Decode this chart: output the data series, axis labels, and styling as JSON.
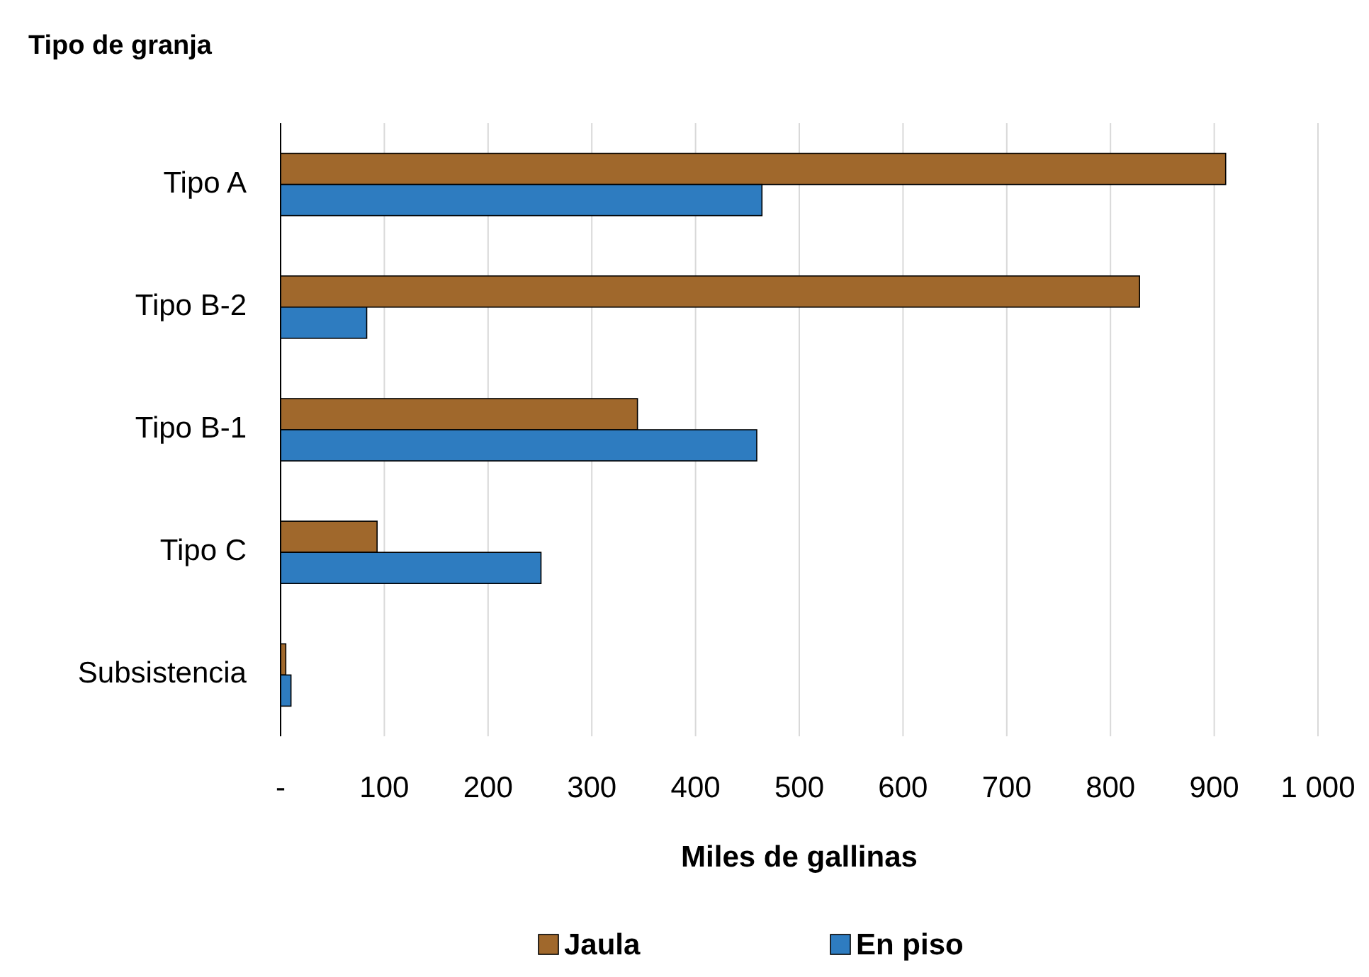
{
  "chart_data": {
    "type": "bar",
    "orientation": "horizontal",
    "ylabel": "Tipo de granja",
    "xlabel": "Miles de gallinas",
    "categories": [
      "Tipo A",
      "Tipo B-2",
      "Tipo B-1",
      "Tipo C",
      "Subsistencia"
    ],
    "series": [
      {
        "name": "Jaula",
        "color": "#a0682c",
        "values": [
          911,
          828,
          344,
          93,
          5
        ]
      },
      {
        "name": "En piso",
        "color": "#2e7cc0",
        "values": [
          464,
          83,
          459,
          251,
          10
        ]
      }
    ],
    "xlim": [
      0,
      1000
    ],
    "xticks": [
      {
        "value": 0,
        "label": "-"
      },
      100,
      200,
      300,
      400,
      500,
      600,
      700,
      800,
      900,
      {
        "value": 1000,
        "label": "1 000"
      }
    ],
    "grid": "x",
    "legend": "bottom"
  }
}
